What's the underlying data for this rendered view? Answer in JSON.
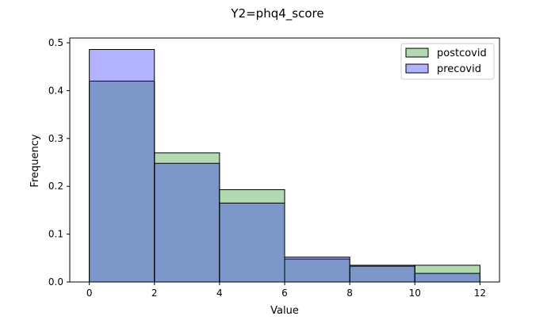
{
  "chart_data": {
    "type": "bar",
    "title": "Y2=phq4_score",
    "xlabel": "Value",
    "ylabel": "Frequency",
    "bin_edges": [
      0,
      2,
      4,
      6,
      8,
      10,
      12
    ],
    "xlim": [
      -0.6,
      12.6
    ],
    "ylim": [
      0,
      0.51
    ],
    "xticks": [
      0,
      2,
      4,
      6,
      8,
      10,
      12
    ],
    "yticks": [
      0.0,
      0.1,
      0.2,
      0.3,
      0.4,
      0.5
    ],
    "xtick_labels": [
      "0",
      "2",
      "4",
      "6",
      "8",
      "10",
      "12"
    ],
    "ytick_labels": [
      "0.0",
      "0.1",
      "0.2",
      "0.3",
      "0.4",
      "0.5"
    ],
    "grid": false,
    "legend_position": "top-right",
    "series": [
      {
        "name": "postcovid",
        "values": [
          0.42,
          0.27,
          0.193,
          0.048,
          0.035,
          0.035
        ],
        "color": "#008000",
        "alpha": 0.3
      },
      {
        "name": "precovid",
        "values": [
          0.486,
          0.248,
          0.165,
          0.052,
          0.033,
          0.018
        ],
        "color": "#0000ff",
        "alpha": 0.3
      }
    ]
  }
}
